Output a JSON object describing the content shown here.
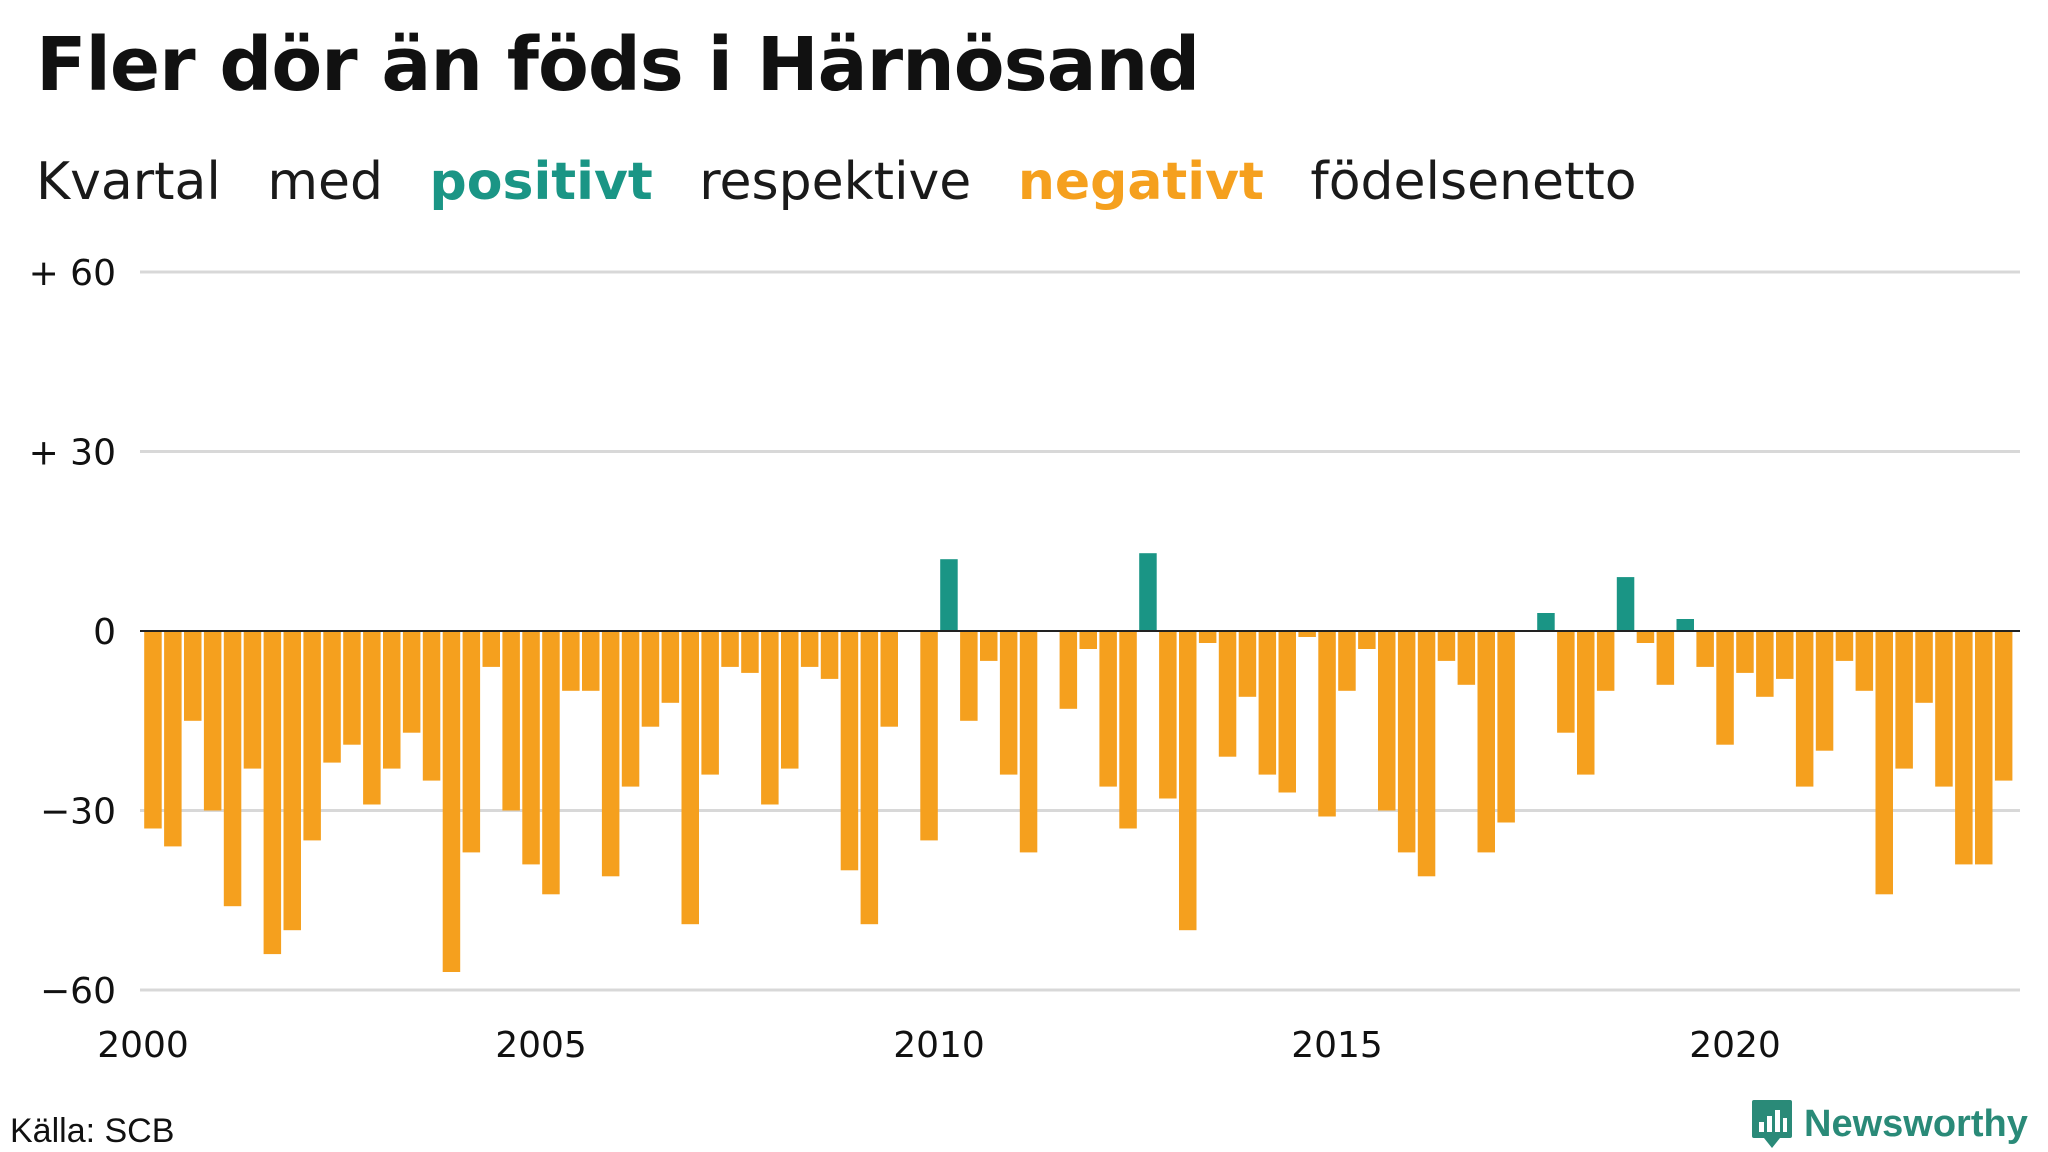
{
  "title": "Fler dör än föds i Härnösand",
  "subtitle": {
    "part1": "Kvartal",
    "part2": "med",
    "positive_word": "positivt",
    "part3": "respektive",
    "negative_word": "negativt",
    "part4": "födelsenetto"
  },
  "colors": {
    "positive": "#1a9585",
    "negative": "#f5a01e",
    "grid": "#d8d8d8",
    "zero_line": "#222222"
  },
  "source": "Källa: SCB",
  "logo_text": "Newsworthy",
  "chart_data": {
    "type": "bar",
    "x_start": 2000,
    "x_step_per_quarter": 0.25,
    "ylim": [
      -60,
      60
    ],
    "ytick_labels": [
      {
        "value": 60,
        "label": "+ 60"
      },
      {
        "value": 30,
        "label": "+ 30"
      },
      {
        "value": 0,
        "label": "0"
      },
      {
        "value": -30,
        "label": "−30"
      },
      {
        "value": -60,
        "label": "−60"
      }
    ],
    "xtick_labels": [
      "2000",
      "2005",
      "2010",
      "2015",
      "2020"
    ],
    "xticks": [
      2000,
      2005,
      2010,
      2015,
      2020
    ],
    "values": [
      -33,
      -36,
      -15,
      -30,
      -46,
      -23,
      -54,
      -50,
      -35,
      -22,
      -19,
      -29,
      -23,
      -17,
      -25,
      -57,
      -37,
      -6,
      -30,
      -39,
      -44,
      -10,
      -10,
      -41,
      -26,
      -16,
      -12,
      -49,
      -24,
      -6,
      -7,
      -29,
      -23,
      -6,
      -8,
      -40,
      -49,
      -16,
      0,
      -35,
      12,
      -15,
      -5,
      -24,
      -37,
      0,
      -13,
      -3,
      -26,
      -33,
      13,
      -28,
      -50,
      -2,
      -21,
      -11,
      -24,
      -27,
      -1,
      -31,
      -10,
      -3,
      -30,
      -37,
      -41,
      -5,
      -9,
      -37,
      -32,
      0,
      3,
      -17,
      -24,
      -10,
      9,
      -2,
      -9,
      2,
      -6,
      -19,
      -7,
      -11,
      -8,
      -26,
      -20,
      -5,
      -10,
      -44,
      -23,
      -12,
      -26,
      -39,
      -39,
      -25
    ]
  }
}
